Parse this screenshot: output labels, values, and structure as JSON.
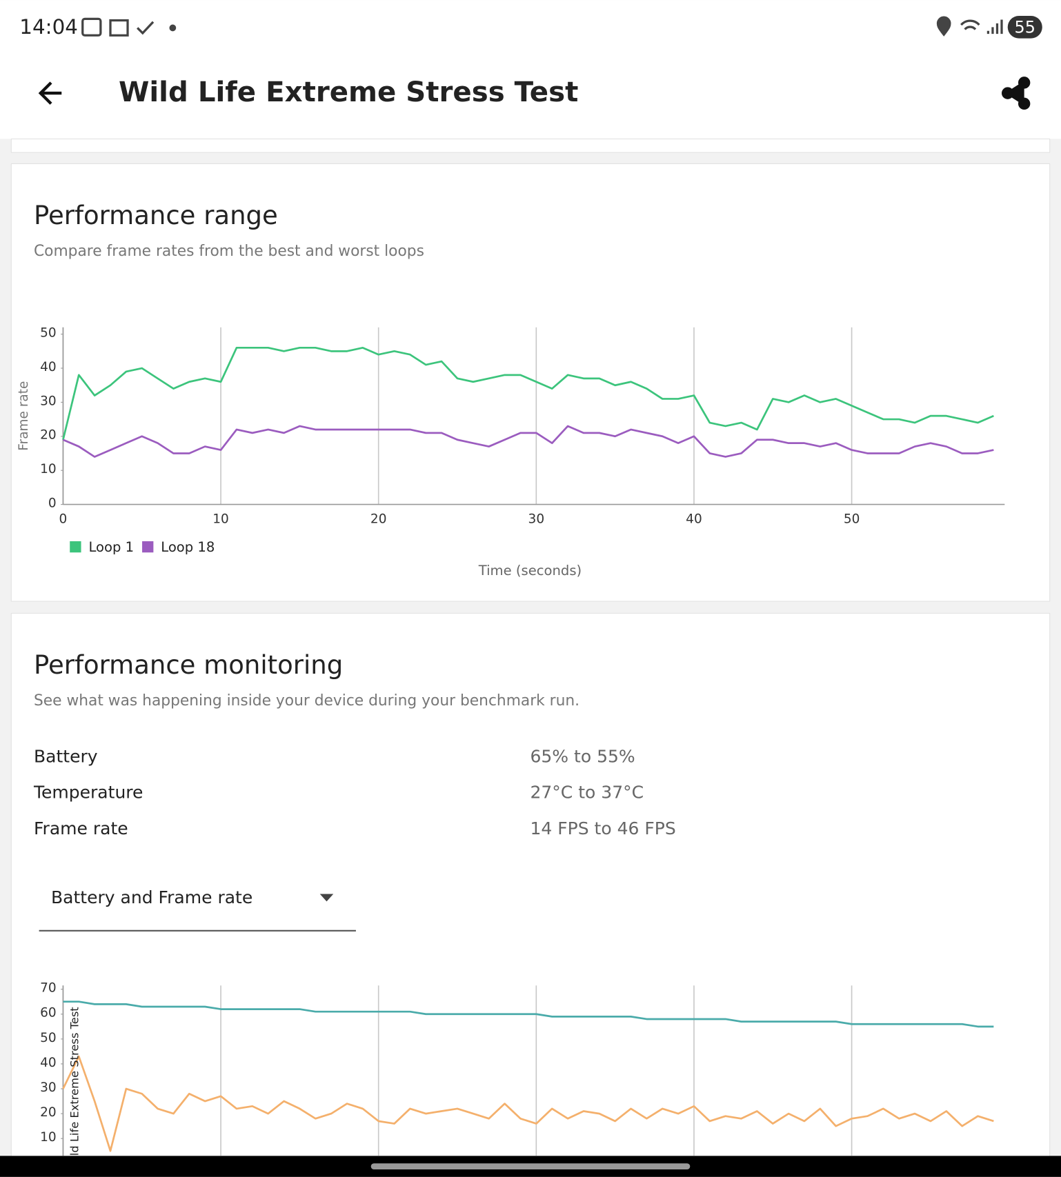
{
  "status_bar": {
    "time": "14:04",
    "battery": "55"
  },
  "app_bar": {
    "title": "Wild Life Extreme Stress Test"
  },
  "chart_data": [
    {
      "type": "line",
      "title": "Performance range",
      "subtitle": "Compare frame rates from the best and worst loops",
      "y_label": "Frame rate",
      "x_label": "Time (seconds)",
      "x": [
        0,
        1,
        2,
        3,
        4,
        5,
        6,
        7,
        8,
        9,
        10,
        11,
        12,
        13,
        14,
        15,
        16,
        17,
        18,
        19,
        20,
        21,
        22,
        23,
        24,
        25,
        26,
        27,
        28,
        29,
        30,
        31,
        32,
        33,
        34,
        35,
        36,
        37,
        38,
        39,
        40,
        41,
        42,
        43,
        44,
        45,
        46,
        47,
        48,
        49,
        50,
        51,
        52,
        53,
        54,
        55,
        56,
        57,
        58,
        59
      ],
      "series": [
        {
          "name": "Loop 1",
          "color": "#3cc47c",
          "values": [
            19,
            38,
            32,
            35,
            39,
            40,
            37,
            34,
            36,
            37,
            36,
            46,
            46,
            46,
            45,
            46,
            46,
            45,
            45,
            46,
            44,
            45,
            44,
            41,
            42,
            37,
            36,
            37,
            38,
            38,
            36,
            34,
            38,
            37,
            37,
            35,
            36,
            34,
            31,
            31,
            32,
            24,
            23,
            24,
            22,
            31,
            30,
            32,
            30,
            31,
            29,
            27,
            25,
            25,
            24,
            26,
            26,
            25,
            24,
            26
          ]
        },
        {
          "name": "Loop 18",
          "color": "#9b5cbf",
          "values": [
            19,
            17,
            14,
            16,
            18,
            20,
            18,
            15,
            15,
            17,
            16,
            22,
            21,
            22,
            21,
            23,
            22,
            22,
            22,
            22,
            22,
            22,
            22,
            21,
            21,
            19,
            18,
            17,
            19,
            21,
            21,
            18,
            23,
            21,
            21,
            20,
            22,
            21,
            20,
            18,
            20,
            15,
            14,
            15,
            19,
            19,
            18,
            18,
            17,
            18,
            16,
            15,
            15,
            15,
            17,
            18,
            17,
            15,
            15,
            16
          ]
        }
      ],
      "xlim": [
        0,
        59.7
      ],
      "ylim": [
        0,
        52
      ],
      "xticks": [
        0,
        10,
        20,
        30,
        40,
        50
      ],
      "yticks": [
        0,
        10,
        20,
        30,
        40,
        50
      ],
      "x_grid": true,
      "legend": "bottom-left"
    },
    {
      "type": "line",
      "y_label": "Wild Life Extreme Stress Test",
      "x": [
        0,
        1,
        2,
        3,
        4,
        5,
        6,
        7,
        8,
        9,
        10,
        11,
        12,
        13,
        14,
        15,
        16,
        17,
        18,
        19,
        20,
        21,
        22,
        23,
        24,
        25,
        26,
        27,
        28,
        29,
        30,
        31,
        32,
        33,
        34,
        35,
        36,
        37,
        38,
        39,
        40,
        41,
        42,
        43,
        44,
        45,
        46,
        47,
        48,
        49,
        50,
        51,
        52,
        53,
        54,
        55,
        56,
        57,
        58,
        59
      ],
      "series": [
        {
          "color": "#4aabaa",
          "values": [
            65,
            65,
            64,
            64,
            64,
            63,
            63,
            63,
            63,
            63,
            62,
            62,
            62,
            62,
            62,
            62,
            61,
            61,
            61,
            61,
            61,
            61,
            61,
            60,
            60,
            60,
            60,
            60,
            60,
            60,
            60,
            59,
            59,
            59,
            59,
            59,
            59,
            58,
            58,
            58,
            58,
            58,
            58,
            57,
            57,
            57,
            57,
            57,
            57,
            57,
            56,
            56,
            56,
            56,
            56,
            56,
            56,
            56,
            55,
            55
          ]
        },
        {
          "color": "#f4b06c",
          "values": [
            30,
            43,
            25,
            5,
            30,
            28,
            22,
            20,
            28,
            25,
            27,
            22,
            23,
            20,
            25,
            22,
            18,
            20,
            24,
            22,
            17,
            16,
            22,
            20,
            21,
            22,
            20,
            18,
            24,
            18,
            16,
            22,
            18,
            21,
            20,
            17,
            22,
            18,
            22,
            20,
            23,
            17,
            19,
            18,
            21,
            16,
            20,
            17,
            22,
            15,
            18,
            19,
            22,
            18,
            20,
            17,
            21,
            15,
            19,
            17
          ]
        }
      ],
      "xlim": [
        0,
        59.7
      ],
      "ylim": [
        0,
        71.5
      ],
      "xticks": [
        0,
        10,
        20,
        30,
        40,
        50
      ],
      "yticks": [
        10,
        20,
        30,
        40,
        50,
        60,
        70
      ],
      "x_grid": true
    }
  ],
  "monitoring": {
    "title": "Performance monitoring",
    "subtitle": "See what was happening inside your device during your benchmark run.",
    "stats": [
      {
        "label": "Battery",
        "value": "65% to 55%"
      },
      {
        "label": "Temperature",
        "value": "27°C to 37°C"
      },
      {
        "label": "Frame rate",
        "value": "14 FPS to 46 FPS"
      }
    ],
    "dropdown": "Battery and Frame rate"
  }
}
